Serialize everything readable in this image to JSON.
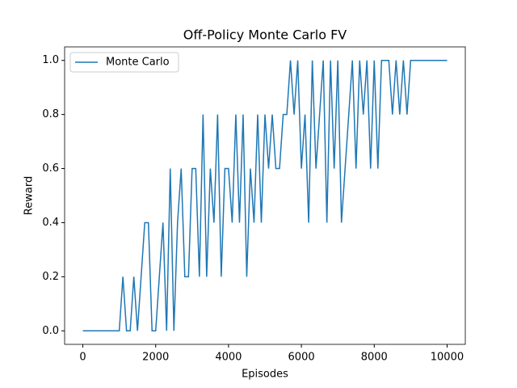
{
  "chart_data": {
    "type": "line",
    "title": "Off-Policy Monte Carlo FV",
    "xlabel": "Episodes",
    "ylabel": "Reward",
    "x": [
      0,
      100,
      200,
      300,
      400,
      500,
      600,
      700,
      800,
      900,
      1000,
      1100,
      1200,
      1300,
      1400,
      1500,
      1600,
      1700,
      1800,
      1900,
      2000,
      2100,
      2200,
      2300,
      2400,
      2500,
      2600,
      2700,
      2800,
      2900,
      3000,
      3100,
      3200,
      3300,
      3400,
      3500,
      3600,
      3700,
      3800,
      3900,
      4000,
      4100,
      4200,
      4300,
      4400,
      4500,
      4600,
      4700,
      4800,
      4900,
      5000,
      5100,
      5200,
      5300,
      5400,
      5500,
      5600,
      5700,
      5800,
      5900,
      6000,
      6100,
      6200,
      6300,
      6400,
      6500,
      6600,
      6700,
      6800,
      6900,
      7000,
      7100,
      7200,
      7300,
      7400,
      7500,
      7600,
      7700,
      7800,
      7900,
      8000,
      8100,
      8200,
      8300,
      8400,
      8500,
      8600,
      8700,
      8800,
      8900,
      9000,
      9100,
      9200,
      9300,
      9400,
      9500,
      9600,
      9700,
      9800,
      9900,
      10000
    ],
    "series": [
      {
        "name": "Monte Carlo",
        "color": "#1f77b4",
        "values": [
          0,
          0,
          0,
          0,
          0,
          0,
          0,
          0,
          0,
          0,
          0,
          0.2,
          0,
          0,
          0.2,
          0,
          0.2,
          0.4,
          0.4,
          0,
          0,
          0.2,
          0.4,
          0,
          0.6,
          0,
          0.4,
          0.6,
          0.2,
          0.2,
          0.6,
          0.6,
          0.2,
          0.8,
          0.2,
          0.6,
          0.4,
          0.8,
          0.2,
          0.6,
          0.6,
          0.4,
          0.8,
          0.4,
          0.8,
          0.2,
          0.6,
          0.4,
          0.8,
          0.4,
          0.8,
          0.6,
          0.8,
          0.6,
          0.6,
          0.8,
          0.8,
          1.0,
          0.8,
          1.0,
          0.6,
          0.8,
          0.4,
          1.0,
          0.6,
          0.8,
          1.0,
          0.4,
          1.0,
          0.6,
          1.0,
          0.4,
          0.6,
          0.8,
          1.0,
          0.6,
          1.0,
          0.8,
          1.0,
          0.6,
          1.0,
          0.6,
          1.0,
          1.0,
          1.0,
          0.8,
          1.0,
          0.8,
          1.0,
          0.8,
          1.0,
          1.0,
          1.0,
          1.0,
          1.0,
          1.0,
          1.0,
          1.0,
          1.0,
          1.0,
          1.0
        ]
      }
    ],
    "xlim": [
      -500,
      10500
    ],
    "xticks": [
      0,
      2000,
      4000,
      6000,
      8000,
      10000
    ],
    "ylim": [
      -0.05,
      1.05
    ],
    "yticks": [
      {
        "value": 0,
        "label": "0.0"
      },
      0.2,
      0.4,
      0.6,
      0.8,
      {
        "value": 1,
        "label": "1.0"
      }
    ],
    "legend": "upper left"
  }
}
